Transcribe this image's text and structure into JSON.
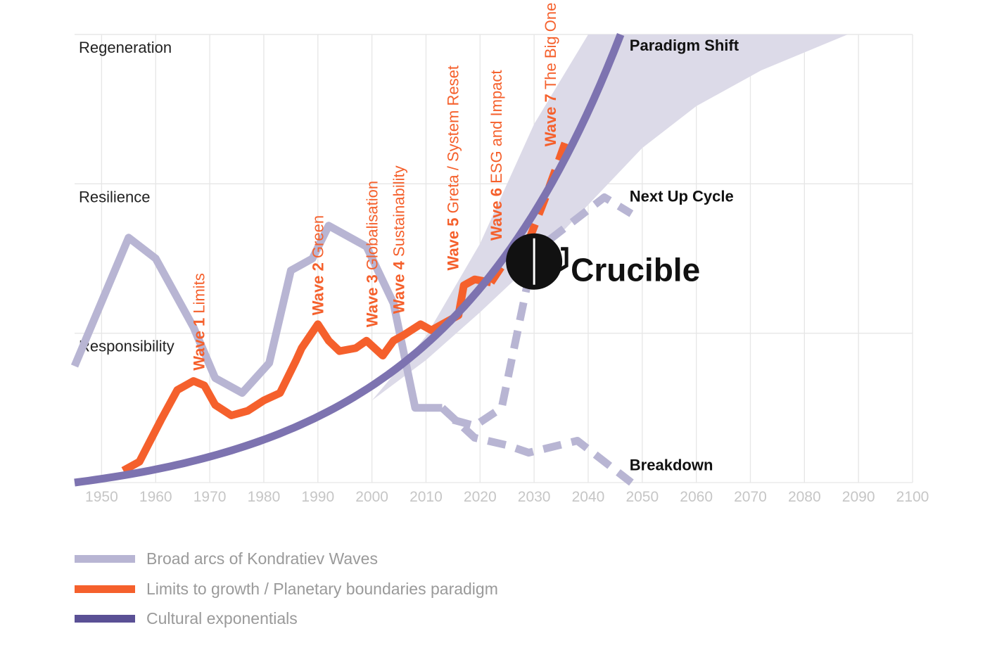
{
  "chart_data": {
    "type": "line",
    "title": "",
    "xlabel": "",
    "ylabel": "",
    "xlim": [
      1945,
      2100
    ],
    "ylim": [
      0,
      3
    ],
    "x_ticks": [
      "1950",
      "1960",
      "1970",
      "1980",
      "1990",
      "2000",
      "2010",
      "2020",
      "2030",
      "2040",
      "2050",
      "2060",
      "2070",
      "2080",
      "2090",
      "2100"
    ],
    "levels": [
      {
        "label": "Regeneration",
        "value": 3
      },
      {
        "label": "Resilience",
        "value": 2
      },
      {
        "label": "Responsibility",
        "value": 1
      }
    ],
    "colors": {
      "kondratiev": "#b8b5d3",
      "limits": "#f5602c",
      "cultural": "#7d73b0",
      "band": "#dcdae8",
      "tick": "#c6c6c6",
      "grid": "#e6e6e6",
      "crucible": "#111111"
    },
    "series": [
      {
        "name": "Broad arcs of Kondratiev Waves",
        "style": "solid",
        "x": [
          1945,
          1955,
          1960,
          1967,
          1971,
          1976,
          1981,
          1985,
          1989,
          1992,
          1999,
          2004,
          2008,
          2013
        ],
        "y": [
          0.78,
          1.64,
          1.5,
          1.04,
          0.7,
          0.6,
          0.8,
          1.42,
          1.5,
          1.72,
          1.58,
          1.2,
          0.5,
          0.5
        ]
      },
      {
        "name": "Broad arcs of Kondratiev Waves (Next Up Cycle)",
        "style": "dashed",
        "x": [
          2015,
          2019,
          2024,
          2029,
          2033,
          2043,
          2048
        ],
        "y": [
          0.42,
          0.38,
          0.5,
          1.37,
          1.63,
          1.91,
          1.8
        ]
      },
      {
        "name": "Broad arcs of Kondratiev Waves (Breakdown)",
        "style": "dashed",
        "x": [
          2013,
          2019,
          2025,
          2029,
          2038,
          2048
        ],
        "y": [
          0.5,
          0.3,
          0.25,
          0.2,
          0.28,
          0.0
        ]
      },
      {
        "name": "Limits to growth / Planetary boundaries paradigm",
        "style": "solid",
        "x": [
          1954,
          1957,
          1961,
          1964,
          1967,
          1969,
          1971,
          1974,
          1977,
          1980,
          1983,
          1986,
          1987,
          1990,
          1992,
          1994,
          1997,
          1999,
          2002,
          2004,
          2006,
          2009,
          2011,
          2014,
          2016,
          2017,
          2019,
          2022
        ],
        "y": [
          0.08,
          0.14,
          0.42,
          0.62,
          0.68,
          0.65,
          0.52,
          0.45,
          0.48,
          0.55,
          0.6,
          0.82,
          0.9,
          1.06,
          0.95,
          0.88,
          0.9,
          0.95,
          0.85,
          0.95,
          0.99,
          1.06,
          1.02,
          1.08,
          1.12,
          1.32,
          1.36,
          1.34
        ]
      },
      {
        "name": "Limits to growth / Planetary boundaries paradigm (Wave 7)",
        "style": "dashed",
        "x": [
          2022,
          2025,
          2026,
          2029,
          2032,
          2036
        ],
        "y": [
          1.34,
          1.5,
          1.5,
          1.62,
          1.9,
          2.3
        ]
      },
      {
        "name": "Cultural exponentials",
        "style": "solid",
        "growth": "exponential",
        "x": [
          1945,
          1960,
          1970,
          1980,
          1990,
          2000,
          2010,
          2020,
          2030,
          2040,
          2046
        ],
        "y": [
          0.0,
          0.05,
          0.12,
          0.22,
          0.38,
          0.6,
          0.85,
          1.16,
          1.62,
          2.4,
          3.0
        ]
      }
    ],
    "band": {
      "name": "Range of outcomes",
      "x": [
        2000,
        2010,
        2020,
        2030,
        2040,
        2050,
        2060,
        2072,
        2088
      ],
      "upper": [
        0.55,
        0.98,
        1.6,
        2.4,
        3.0,
        3.0,
        3.0,
        3.0,
        3.0
      ],
      "lower": [
        0.55,
        0.82,
        1.14,
        1.48,
        1.86,
        2.24,
        2.52,
        2.76,
        3.0
      ]
    },
    "waves": [
      {
        "label": "Wave 1",
        "desc": "Limits",
        "year": 1969,
        "base": 0.75
      },
      {
        "label": "Wave 2",
        "desc": "Green",
        "year": 1991,
        "base": 1.12
      },
      {
        "label": "Wave 3",
        "desc": "Globalisation",
        "year": 2001,
        "base": 1.04
      },
      {
        "label": "Wave 4",
        "desc": "Sustainability",
        "year": 2006,
        "base": 1.13
      },
      {
        "label": "Wave 5",
        "desc": "Greta / System Reset",
        "year": 2016,
        "base": 1.42
      },
      {
        "label": "Wave 6",
        "desc": "ESG and Impact",
        "year": 2024,
        "base": 1.62
      },
      {
        "label": "Wave 7",
        "desc": "The Big One",
        "year": 2034,
        "base": 2.25
      }
    ],
    "annotations": [
      {
        "text": "Paradigm Shift",
        "x": 2050,
        "y": 2.93
      },
      {
        "text": "Next Up Cycle",
        "x": 2050,
        "y": 1.92
      },
      {
        "text": "Breakdown",
        "x": 2050,
        "y": 0.12
      }
    ],
    "crucible": {
      "label": "Crucible",
      "x": 2030,
      "y": 1.48
    }
  },
  "legend": [
    {
      "label": "Broad arcs of Kondratiev Waves",
      "color": "#b8b5d3"
    },
    {
      "label": "Limits to growth / Planetary boundaries paradigm",
      "color": "#f5602c"
    },
    {
      "label": "Cultural exponentials",
      "color": "#5a5095"
    }
  ]
}
